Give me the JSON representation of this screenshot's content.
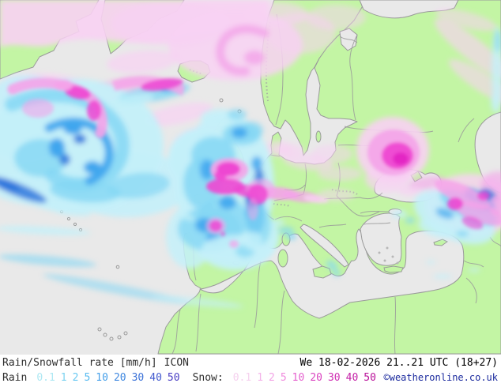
{
  "header": {
    "product": "Rain/Snowfall rate [mm/h]",
    "model": "ICON",
    "datetime": "We 18-02-2026 21..21 UTC (18+27)"
  },
  "legend": {
    "rain_label": "Rain",
    "snow_label": "Snow:",
    "rain_scale": [
      {
        "value": "0.1",
        "color": "#aee8f3"
      },
      {
        "value": "1",
        "color": "#7cd2f0"
      },
      {
        "value": "2",
        "color": "#68c8f2"
      },
      {
        "value": "5",
        "color": "#56baf0"
      },
      {
        "value": "10",
        "color": "#459fe9"
      },
      {
        "value": "20",
        "color": "#3f88e0"
      },
      {
        "value": "30",
        "color": "#3c72d8"
      },
      {
        "value": "40",
        "color": "#4058ce"
      },
      {
        "value": "50",
        "color": "#4a3fc4"
      }
    ],
    "snow_scale": [
      {
        "value": "0.1",
        "color": "#f6d2ef"
      },
      {
        "value": "1",
        "color": "#f4b4ea"
      },
      {
        "value": "2",
        "color": "#f2a2e5"
      },
      {
        "value": "5",
        "color": "#f08cde"
      },
      {
        "value": "10",
        "color": "#e560ce"
      },
      {
        "value": "20",
        "color": "#da44c0"
      },
      {
        "value": "30",
        "color": "#cf2fb2"
      },
      {
        "value": "40",
        "color": "#c41fa6"
      },
      {
        "value": "50",
        "color": "#ba129a"
      }
    ]
  },
  "footer": {
    "copyright": "©weatheronline.co.uk",
    "copyright_color": "#1b2a9e"
  },
  "map": {
    "colors": {
      "sea": "#e9e9e9",
      "land": "#c3f5a4",
      "coast": "#9a9a9a",
      "rainL": "#c4f0f9",
      "rainM": "#85d7f4",
      "rainS": "#3fa6ee",
      "rainI": "#2f77dd",
      "snowL": "#f8d2f3",
      "snowM": "#f4a3e9",
      "snowS": "#ee46d2",
      "snowX": "#e01fc0"
    }
  }
}
